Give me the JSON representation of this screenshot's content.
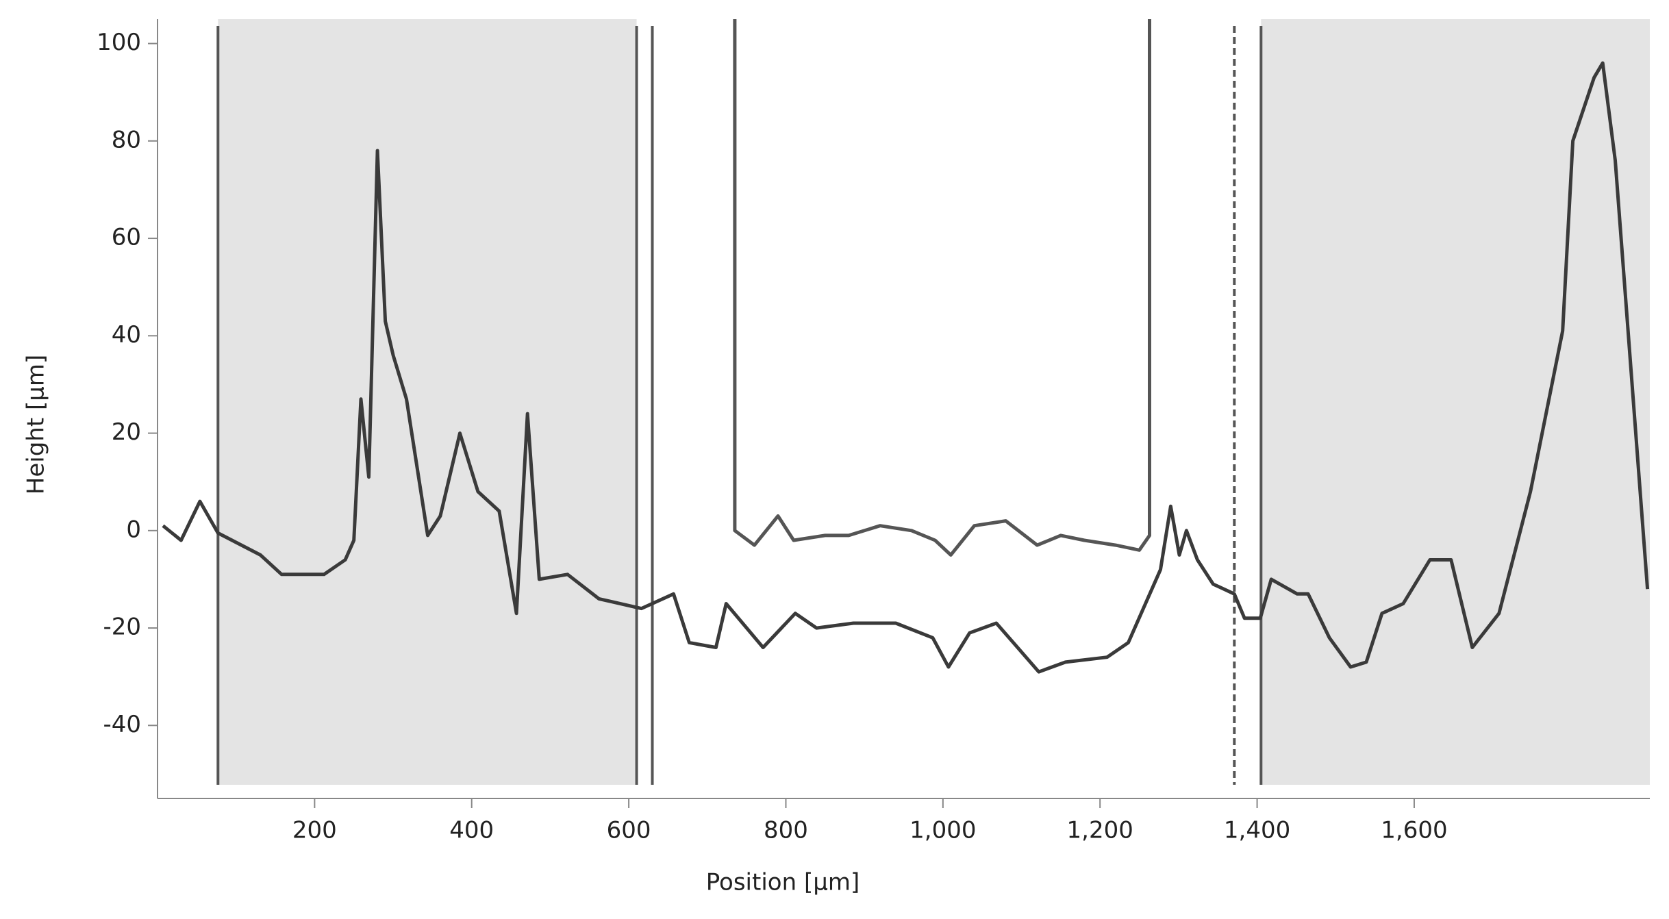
{
  "chart_data": {
    "type": "line",
    "xlabel": "Position [µm]",
    "ylabel": "Height [µm]",
    "xlim": [
      0,
      1900
    ],
    "ylim": [
      -55,
      105
    ],
    "xticks": [
      200,
      400,
      600,
      800,
      {
        "value": 1000,
        "label": "1,000"
      },
      {
        "value": 1200,
        "label": "1,200"
      },
      {
        "value": 1400,
        "label": "1,400"
      },
      {
        "value": 1600,
        "label": "1,600"
      }
    ],
    "yticks": [
      -40,
      -20,
      0,
      20,
      40,
      60,
      80,
      100
    ],
    "regions": [
      [
        77,
        610
      ],
      [
        1405,
        1900
      ]
    ],
    "region_color": "#e4e4e4",
    "cursors": [
      77,
      610,
      630,
      1371,
      1405
    ],
    "cursor_color": "#555555",
    "series": [
      {
        "color": "#3a3a3a",
        "x": [
          7,
          30,
          54,
          77,
          131,
          158,
          212,
          239,
          250,
          259,
          269,
          280,
          290,
          300,
          317,
          344,
          360,
          385,
          408,
          435,
          457,
          471,
          486,
          522,
          562,
          616,
          657,
          677,
          711,
          724,
          771,
          812,
          839,
          886,
          940,
          987,
          1007,
          1034,
          1068,
          1095,
          1122,
          1156,
          1209,
          1236,
          1277,
          1290,
          1301,
          1310,
          1324,
          1344,
          1371,
          1384,
          1404,
          1418,
          1451,
          1465,
          1492,
          1519,
          1539,
          1559,
          1586,
          1620,
          1647,
          1674,
          1708,
          1748,
          1789,
          1802,
          1829,
          1840,
          1856,
          1897
        ],
        "values": [
          1,
          -2,
          6,
          -0.5,
          -5,
          -9,
          -9,
          -6,
          -2,
          27,
          11,
          78,
          43,
          36,
          27,
          -1,
          3,
          20,
          8,
          4,
          -17,
          24,
          -10,
          -9,
          -14,
          -16,
          -13,
          -23,
          -24,
          -15,
          -24,
          -17,
          -20,
          -19,
          -19,
          -22,
          -28,
          -21,
          -19,
          -24,
          -29,
          -27,
          -26,
          -23,
          -8,
          5,
          -5,
          0,
          -6,
          -11,
          -13,
          -18,
          -18,
          -10,
          -13,
          -13,
          -22,
          -28,
          -27,
          -17,
          -15,
          -6,
          -6,
          -24,
          -17,
          8,
          41,
          80,
          93,
          96,
          76,
          -12
        ]
      },
      {
        "color": "#555555",
        "x": [
          735,
          735,
          760,
          790,
          810,
          850,
          880,
          920,
          960,
          990,
          1010,
          1040,
          1080,
          1120,
          1150,
          1180,
          1220,
          1250,
          1263,
          1263
        ],
        "values": [
          105,
          0,
          -3,
          3,
          -2,
          -1,
          -1,
          1,
          0,
          -2,
          -5,
          1,
          2,
          -3,
          -1,
          -2,
          -3,
          -4,
          -1,
          105
        ]
      }
    ]
  }
}
